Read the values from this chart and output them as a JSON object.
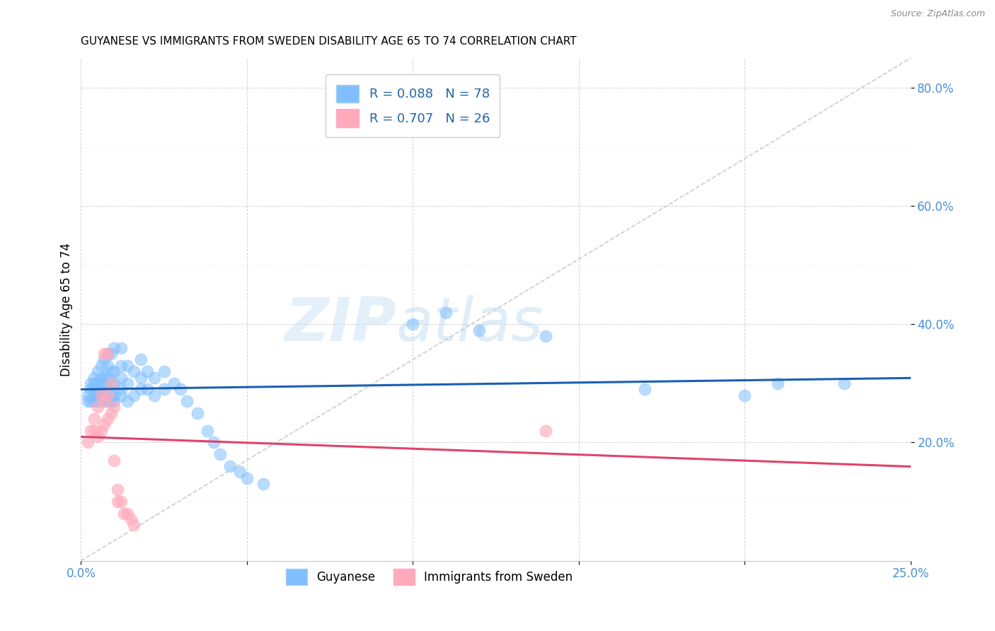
{
  "title": "GUYANESE VS IMMIGRANTS FROM SWEDEN DISABILITY AGE 65 TO 74 CORRELATION CHART",
  "source": "Source: ZipAtlas.com",
  "ylabel": "Disability Age 65 to 74",
  "xlim": [
    0.0,
    0.25
  ],
  "ylim": [
    0.0,
    0.85
  ],
  "blue_color": "#7fbfff",
  "pink_color": "#ffaabb",
  "blue_line_color": "#1a5fb4",
  "pink_line_color": "#e0436a",
  "watermark_zip": "ZIP",
  "watermark_atlas": "atlas",
  "blue_scatter_x": [
    0.002,
    0.002,
    0.003,
    0.003,
    0.003,
    0.004,
    0.004,
    0.004,
    0.004,
    0.004,
    0.005,
    0.005,
    0.005,
    0.005,
    0.005,
    0.006,
    0.006,
    0.006,
    0.006,
    0.006,
    0.007,
    0.007,
    0.007,
    0.007,
    0.007,
    0.008,
    0.008,
    0.008,
    0.008,
    0.008,
    0.009,
    0.009,
    0.009,
    0.009,
    0.009,
    0.01,
    0.01,
    0.01,
    0.01,
    0.01,
    0.012,
    0.012,
    0.012,
    0.012,
    0.012,
    0.014,
    0.014,
    0.014,
    0.016,
    0.016,
    0.018,
    0.018,
    0.018,
    0.02,
    0.02,
    0.022,
    0.022,
    0.025,
    0.025,
    0.028,
    0.03,
    0.032,
    0.035,
    0.038,
    0.04,
    0.042,
    0.045,
    0.048,
    0.05,
    0.055,
    0.1,
    0.11,
    0.12,
    0.14,
    0.17,
    0.2,
    0.21,
    0.23
  ],
  "blue_scatter_y": [
    0.27,
    0.28,
    0.27,
    0.29,
    0.3,
    0.27,
    0.28,
    0.29,
    0.3,
    0.31,
    0.27,
    0.28,
    0.29,
    0.3,
    0.32,
    0.27,
    0.28,
    0.3,
    0.31,
    0.33,
    0.27,
    0.28,
    0.3,
    0.31,
    0.34,
    0.27,
    0.29,
    0.31,
    0.33,
    0.35,
    0.27,
    0.28,
    0.3,
    0.32,
    0.35,
    0.27,
    0.28,
    0.3,
    0.32,
    0.36,
    0.28,
    0.29,
    0.31,
    0.33,
    0.36,
    0.27,
    0.3,
    0.33,
    0.28,
    0.32,
    0.29,
    0.31,
    0.34,
    0.29,
    0.32,
    0.28,
    0.31,
    0.29,
    0.32,
    0.3,
    0.29,
    0.27,
    0.25,
    0.22,
    0.2,
    0.18,
    0.16,
    0.15,
    0.14,
    0.13,
    0.4,
    0.42,
    0.39,
    0.38,
    0.29,
    0.28,
    0.3,
    0.3
  ],
  "pink_scatter_x": [
    0.002,
    0.003,
    0.004,
    0.004,
    0.005,
    0.005,
    0.006,
    0.006,
    0.007,
    0.007,
    0.007,
    0.008,
    0.008,
    0.008,
    0.009,
    0.009,
    0.01,
    0.01,
    0.011,
    0.011,
    0.012,
    0.013,
    0.014,
    0.015,
    0.016,
    0.14
  ],
  "pink_scatter_y": [
    0.2,
    0.22,
    0.22,
    0.24,
    0.21,
    0.26,
    0.22,
    0.28,
    0.23,
    0.27,
    0.35,
    0.24,
    0.28,
    0.35,
    0.25,
    0.3,
    0.17,
    0.26,
    0.1,
    0.12,
    0.1,
    0.08,
    0.08,
    0.07,
    0.06,
    0.22
  ]
}
